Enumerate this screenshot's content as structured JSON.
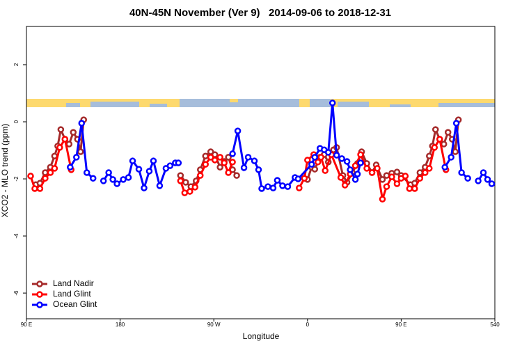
{
  "chart_data": {
    "type": "line",
    "title": "40N-45N November (Ver 9)   2014-09-06 to 2018-12-31",
    "x_label": "Longitude",
    "y_label": "XCO2 - MLO trend (ppm)",
    "xlim": [
      90,
      540
    ],
    "xticks": [
      {
        "value": 90,
        "label": "90 E"
      },
      180,
      {
        "value": 270,
        "label": "90 W"
      },
      {
        "value": 360,
        "label": "0"
      },
      {
        "value": 450,
        "label": "90 E"
      },
      540
    ],
    "ylim": [
      -6.9,
      3.34
    ],
    "yticks": [
      -6,
      -4,
      -2,
      0,
      2
    ],
    "legend": "bottomleft",
    "series": [
      {
        "name": "Land Nadir",
        "color": "#a52a2a",
        "x": [
          99,
          103,
          108,
          113,
          117,
          120,
          123,
          127,
          131,
          135,
          139,
          142,
          145,
          null,
          238,
          243,
          248,
          253,
          257,
          262,
          267,
          271,
          276,
          280,
          284,
          288,
          292,
          null,
          360,
          364,
          367,
          372,
          376,
          380,
          385,
          388,
          394,
          398,
          403,
          408,
          412,
          417,
          422,
          426,
          432,
          436,
          441,
          446,
          450,
          459,
          463,
          468,
          473,
          477,
          480,
          483,
          487,
          491,
          495,
          499,
          502,
          505
        ],
        "values": [
          -2.2,
          -2.15,
          -1.78,
          -1.59,
          -1.2,
          -0.85,
          -0.27,
          -0.61,
          -0.78,
          -0.37,
          -0.61,
          -1.05,
          0.07,
          null,
          -1.88,
          -2.12,
          -2.27,
          -2.07,
          -1.68,
          -1.2,
          -1.05,
          -1.15,
          -1.59,
          -1.39,
          -1.24,
          -1.68,
          -1.88,
          null,
          -2.02,
          -1.59,
          -1.66,
          -1.24,
          -1.15,
          -1.41,
          -0.98,
          -0.9,
          -1.88,
          -2.12,
          -1.78,
          -1.46,
          -1.05,
          -1.46,
          -1.78,
          -1.51,
          -2.02,
          -1.88,
          -1.8,
          -1.76,
          -1.88,
          -2.2,
          -2.15,
          -1.78,
          -1.59,
          -1.2,
          -0.85,
          -0.27,
          -0.61,
          -0.78,
          -0.37,
          -0.61,
          -1.05,
          0.07
        ]
      },
      {
        "name": "Land Glint",
        "color": "#ff0000",
        "x": [
          94,
          98,
          103,
          108,
          113,
          117,
          122,
          127,
          133,
          null,
          238,
          242,
          247,
          252,
          257,
          262,
          267,
          271,
          276,
          280,
          284,
          288,
          null,
          352,
          357,
          360,
          366,
          370,
          373,
          377,
          383,
          392,
          396,
          401,
          406,
          411,
          417,
          422,
          427,
          432,
          436,
          441,
          446,
          450,
          454,
          458,
          463,
          468,
          473,
          477,
          482,
          487,
          493
        ],
        "values": [
          -1.9,
          -2.34,
          -2.34,
          -1.98,
          -1.78,
          -1.63,
          -0.9,
          -0.61,
          -1.68,
          null,
          -2.07,
          -2.49,
          -2.44,
          -2.29,
          -1.88,
          -1.49,
          -1.24,
          -1.34,
          -1.24,
          -1.44,
          -1.78,
          -1.41,
          null,
          -2.32,
          -1.98,
          -1.34,
          -1.15,
          -1.41,
          -1.24,
          -1.71,
          -1.15,
          -1.95,
          -2.22,
          -1.83,
          -1.54,
          -1.15,
          -1.63,
          -1.78,
          -1.63,
          -2.71,
          -2.27,
          -1.93,
          -2.17,
          -1.98,
          -1.9,
          -2.34,
          -2.34,
          -1.98,
          -1.78,
          -1.63,
          -0.9,
          -0.61,
          -1.68
        ]
      },
      {
        "name": "Ocean Glint",
        "color": "#0000ff",
        "x": [
          132,
          138,
          143,
          148,
          154,
          null,
          164,
          169,
          173,
          177,
          183,
          188,
          192,
          198,
          203,
          208,
          212,
          218,
          224,
          228,
          233,
          236,
          null,
          288,
          293,
          299,
          303,
          309,
          313,
          316,
          322,
          327,
          331,
          336,
          341,
          348,
          351,
          364,
          367,
          372,
          376,
          380,
          384,
          388,
          393,
          398,
          401,
          406,
          408,
          411,
          null,
          492,
          498,
          503,
          508,
          514,
          null,
          524,
          529,
          533,
          537
        ],
        "values": [
          -1.59,
          -1.24,
          -0.05,
          -1.78,
          -1.98,
          null,
          -2.07,
          -1.78,
          -2.02,
          -2.17,
          -2.02,
          -1.95,
          -1.37,
          -1.66,
          -2.32,
          -1.73,
          -1.37,
          -2.24,
          -1.63,
          -1.54,
          -1.44,
          -1.44,
          null,
          -1.12,
          -0.32,
          -1.61,
          -1.24,
          -1.37,
          -1.68,
          -2.34,
          -2.27,
          -2.32,
          -2.05,
          -2.24,
          -2.27,
          -1.95,
          -2.0,
          -1.49,
          -1.24,
          -0.93,
          -0.98,
          -1.07,
          0.66,
          -1.17,
          -1.29,
          -1.39,
          -1.68,
          -2.02,
          -1.83,
          -1.44,
          null,
          -1.59,
          -1.24,
          -0.05,
          -1.78,
          -1.98,
          null,
          -2.07,
          -1.78,
          -2.02,
          -2.17
        ]
      }
    ]
  }
}
